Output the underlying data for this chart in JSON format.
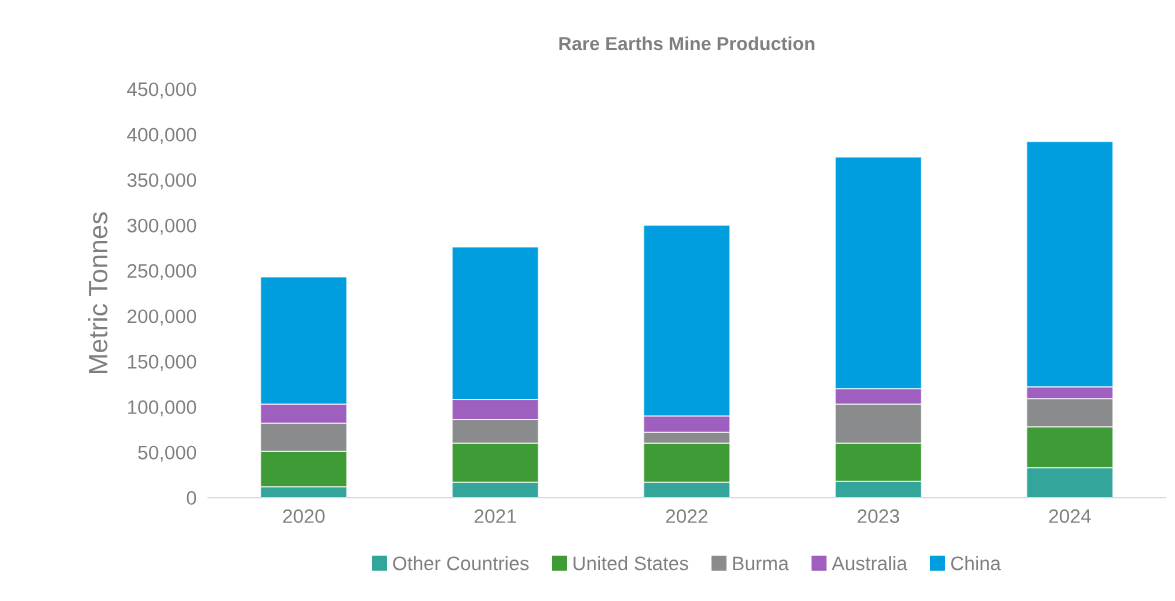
{
  "chart_data": {
    "type": "bar",
    "title": "Rare Earths Mine Production",
    "ylabel": "Metric Tonnes",
    "categories": [
      "2020",
      "2021",
      "2022",
      "2023",
      "2024"
    ],
    "stacked": true,
    "series": [
      {
        "name": "Other Countries",
        "color": "#33a59a",
        "values": [
          12000,
          17000,
          17000,
          18000,
          33000
        ]
      },
      {
        "name": "United States",
        "color": "#3f9b35",
        "values": [
          39000,
          43000,
          43000,
          42000,
          45000
        ]
      },
      {
        "name": "Burma",
        "color": "#898b8d",
        "values": [
          31000,
          26000,
          12000,
          43000,
          31000
        ]
      },
      {
        "name": "Australia",
        "color": "#9e5fbf",
        "values": [
          21000,
          22000,
          18000,
          17000,
          13000
        ]
      },
      {
        "name": "China",
        "color": "#009ddf",
        "values": [
          140000,
          168000,
          210000,
          255000,
          270000
        ]
      }
    ],
    "ylim": [
      0,
      450000
    ],
    "yticks": [
      {
        "value": 0,
        "label": "0"
      },
      {
        "value": 50000,
        "label": "50,000"
      },
      {
        "value": 100000,
        "label": "100,000"
      },
      {
        "value": 150000,
        "label": "150,000"
      },
      {
        "value": 200000,
        "label": "200,000"
      },
      {
        "value": 250000,
        "label": "250,000"
      },
      {
        "value": 300000,
        "label": "300,000"
      },
      {
        "value": 350000,
        "label": "350,000"
      },
      {
        "value": 400000,
        "label": "400,000"
      },
      {
        "value": 450000,
        "label": "450,000"
      }
    ],
    "grid": false,
    "legend": "bottom"
  }
}
